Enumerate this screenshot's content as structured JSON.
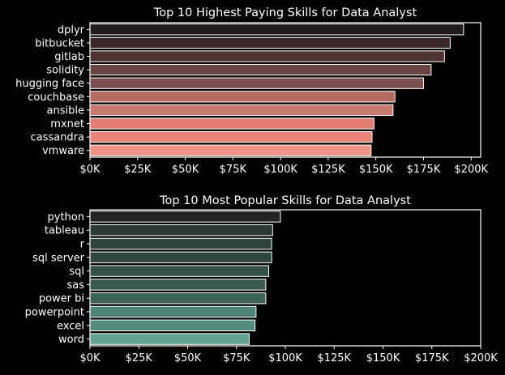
{
  "chart_data": [
    {
      "type": "bar",
      "orientation": "horizontal",
      "title": "Top 10 Highest Paying Skills for Data Analyst",
      "xlabel": "",
      "ylabel": "",
      "categories": [
        "dplyr",
        "bitbucket",
        "gitlab",
        "solidity",
        "hugging face",
        "couchbase",
        "ansible",
        "mxnet",
        "cassandra",
        "vmware"
      ],
      "values": [
        196000,
        189000,
        186000,
        179000,
        175000,
        160000,
        159000,
        149000,
        148000,
        147500
      ],
      "colors": [
        "#231c1c",
        "#3b2828",
        "#4f3333",
        "#6a4343",
        "#7d5050",
        "#b7685f",
        "#c7796f",
        "#e27e71",
        "#ea8679",
        "#ef9485"
      ],
      "xlim": [
        0,
        205000
      ],
      "xticks": [
        0,
        25000,
        50000,
        75000,
        100000,
        125000,
        150000,
        175000,
        200000
      ],
      "xtick_labels": [
        "$0K",
        "$25K",
        "$50K",
        "$75K",
        "$100K",
        "$125K",
        "$150K",
        "$175K",
        "$200K"
      ],
      "grid": false
    },
    {
      "type": "bar",
      "orientation": "horizontal",
      "title": "Top 10 Most Popular Skills for Data Analyst",
      "xlabel": "",
      "ylabel": "",
      "categories": [
        "python",
        "tableau",
        "r",
        "sql server",
        "sql",
        "sas",
        "power bi",
        "powerpoint",
        "excel",
        "word"
      ],
      "values": [
        97500,
        93500,
        93000,
        93000,
        91500,
        90000,
        90000,
        85000,
        84500,
        81500
      ],
      "colors": [
        "#222222",
        "#2c3a36",
        "#2f423c",
        "#304740",
        "#345048",
        "#385a50",
        "#3d6358",
        "#4e8475",
        "#528a7b",
        "#63a190"
      ],
      "xlim": [
        0,
        200000
      ],
      "xticks": [
        0,
        25000,
        50000,
        75000,
        100000,
        125000,
        150000,
        175000,
        200000
      ],
      "xtick_labels": [
        "$0K",
        "$25K",
        "$50K",
        "$75K",
        "$100K",
        "$125K",
        "$150K",
        "$175K",
        "$200K"
      ],
      "grid": false
    }
  ]
}
